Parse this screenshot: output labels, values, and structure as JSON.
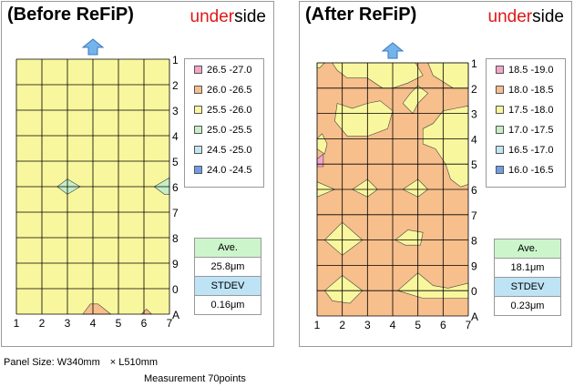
{
  "footer": {
    "panel_size": "Panel Size: W340mm　× L510mm",
    "measurement": "Measurement 70points"
  },
  "colors": {
    "range_pink": "#f4a6c8",
    "range_orange": "#f7bf8c",
    "range_yellow": "#f9f79d",
    "range_green": "#c6efc6",
    "range_cyan": "#c0e6f2",
    "range_blue": "#6f9fe2",
    "grid": "#000000",
    "arrow": "#74b4ec",
    "ave_header": "#ccf5cc",
    "stdev_header": "#bde3f5",
    "side_accent": "#e01818"
  },
  "chart_data": [
    {
      "type": "heatmap",
      "title": "(Before ReFiP)",
      "side": {
        "prefix": "under",
        "suffix": "side"
      },
      "x_ticks": [
        "1",
        "2",
        "3",
        "4",
        "5",
        "6",
        "7"
      ],
      "y_ticks": [
        "1",
        "2",
        "3",
        "4",
        "5",
        "6",
        "7",
        "8",
        "9",
        "0",
        "A"
      ],
      "legend": [
        {
          "label": "26.5 -27.0",
          "color": "#f4a6c8"
        },
        {
          "label": "26.0 -26.5",
          "color": "#f7bf8c"
        },
        {
          "label": "25.5 -26.0",
          "color": "#f9f79d"
        },
        {
          "label": "25.0 -25.5",
          "color": "#c6efc6"
        },
        {
          "label": "24.5 -25.0",
          "color": "#c0e6f2"
        },
        {
          "label": "24.0 -24.5",
          "color": "#6f9fe2"
        }
      ],
      "background_range": "25.5 -26.0",
      "regions": [
        {
          "range": "25.0 -25.5",
          "points": [
            [
              2.6,
              6
            ],
            [
              3,
              5.7
            ],
            [
              3.5,
              6
            ],
            [
              3,
              6.3
            ]
          ]
        },
        {
          "range": "25.0 -25.5",
          "points": [
            [
              6.4,
              6
            ],
            [
              7,
              5.65
            ],
            [
              7,
              6.3
            ],
            [
              6.8,
              6.3
            ]
          ]
        },
        {
          "range": "26.0 -26.5",
          "points": [
            [
              3.6,
              11
            ],
            [
              3.9,
              10.6
            ],
            [
              4.2,
              10.6
            ],
            [
              4.7,
              11
            ]
          ]
        },
        {
          "range": "26.0 -26.5",
          "points": [
            [
              5.9,
              11
            ],
            [
              6.1,
              10.8
            ],
            [
              6.3,
              11
            ]
          ]
        }
      ],
      "stats": {
        "ave_label": "Ave.",
        "ave_value": "25.8μm",
        "stdev_label": "STDEV",
        "stdev_value": "0.16μm"
      }
    },
    {
      "type": "heatmap",
      "title": "(After ReFiP)",
      "side": {
        "prefix": "under",
        "suffix": "side"
      },
      "x_ticks": [
        "1",
        "2",
        "3",
        "4",
        "5",
        "6",
        "7"
      ],
      "y_ticks": [
        "1",
        "2",
        "3",
        "4",
        "5",
        "6",
        "7",
        "8",
        "9",
        "0",
        "A"
      ],
      "legend": [
        {
          "label": "18.5 -19.0",
          "color": "#f4a6c8"
        },
        {
          "label": "18.0 -18.5",
          "color": "#f7bf8c"
        },
        {
          "label": "17.5 -18.0",
          "color": "#f9f79d"
        },
        {
          "label": "17.0 -17.5",
          "color": "#c6efc6"
        },
        {
          "label": "16.5 -17.0",
          "color": "#c0e6f2"
        },
        {
          "label": "16.0 -16.5",
          "color": "#6f9fe2"
        }
      ],
      "background_range": "18.0 -18.5",
      "regions": [
        {
          "range": "17.5 -18.0",
          "points": [
            [
              1,
              1
            ],
            [
              1.3,
              1
            ],
            [
              1.1,
              1.2
            ],
            [
              1,
              1.2
            ]
          ]
        },
        {
          "range": "17.5 -18.0",
          "points": [
            [
              1.6,
              1
            ],
            [
              4.9,
              1
            ],
            [
              5.2,
              1.5
            ],
            [
              4.6,
              1.8
            ],
            [
              4,
              2
            ],
            [
              3.6,
              2
            ],
            [
              3,
              1.6
            ],
            [
              2.2,
              1.6
            ],
            [
              1.8,
              1.3
            ]
          ]
        },
        {
          "range": "17.5 -18.0",
          "points": [
            [
              5.4,
              1
            ],
            [
              7,
              1
            ],
            [
              7,
              2
            ],
            [
              6.4,
              2
            ],
            [
              5.6,
              1.5
            ]
          ]
        },
        {
          "range": "17.5 -18.0",
          "points": [
            [
              1.8,
              2.6
            ],
            [
              2.4,
              2.8
            ],
            [
              3,
              2.6
            ],
            [
              3.5,
              2.5
            ],
            [
              4,
              2.9
            ],
            [
              3.8,
              3.6
            ],
            [
              3,
              3.9
            ],
            [
              2.2,
              3.9
            ],
            [
              1.7,
              3.3
            ]
          ]
        },
        {
          "range": "17.5 -18.0",
          "points": [
            [
              4.4,
              2.6
            ],
            [
              4.7,
              2.2
            ],
            [
              5,
              1.9
            ],
            [
              5.4,
              2.2
            ],
            [
              5,
              2.6
            ],
            [
              4.8,
              3
            ]
          ]
        },
        {
          "range": "17.5 -18.0",
          "points": [
            [
              5.2,
              3.6
            ],
            [
              5.6,
              3.4
            ],
            [
              6,
              2.9
            ],
            [
              6.5,
              2.8
            ],
            [
              7,
              2.7
            ],
            [
              7,
              5.8
            ],
            [
              6.7,
              5.9
            ],
            [
              6.3,
              5.6
            ],
            [
              6.1,
              5
            ],
            [
              5.7,
              4.4
            ],
            [
              5.2,
              4.2
            ]
          ]
        },
        {
          "range": "17.5 -18.0",
          "points": [
            [
              1,
              4
            ],
            [
              1.2,
              3.8
            ],
            [
              1.4,
              4.2
            ],
            [
              1.3,
              4.6
            ],
            [
              1,
              4.4
            ]
          ]
        },
        {
          "range": "17.5 -18.0",
          "points": [
            [
              1,
              5.7
            ],
            [
              1.7,
              6
            ],
            [
              1,
              6.3
            ]
          ]
        },
        {
          "range": "17.5 -18.0",
          "points": [
            [
              2.4,
              6
            ],
            [
              3,
              5.6
            ],
            [
              3.4,
              6
            ],
            [
              3,
              6.3
            ]
          ]
        },
        {
          "range": "17.5 -18.0",
          "points": [
            [
              4.4,
              6
            ],
            [
              5,
              5.6
            ],
            [
              5.4,
              6
            ],
            [
              5,
              6.3
            ]
          ]
        },
        {
          "range": "17.5 -18.0",
          "points": [
            [
              1.3,
              8
            ],
            [
              2,
              7.3
            ],
            [
              2.8,
              8
            ],
            [
              2,
              8.6
            ]
          ]
        },
        {
          "range": "17.5 -18.0",
          "points": [
            [
              4.1,
              8
            ],
            [
              4.6,
              7.6
            ],
            [
              5.2,
              7.7
            ],
            [
              5.1,
              8.2
            ],
            [
              4.5,
              8.2
            ]
          ]
        },
        {
          "range": "17.5 -18.0",
          "points": [
            [
              1.3,
              10
            ],
            [
              2,
              9.4
            ],
            [
              2.8,
              10
            ],
            [
              2.3,
              10.5
            ],
            [
              1.6,
              10.4
            ]
          ]
        },
        {
          "range": "17.5 -18.0",
          "points": [
            [
              4.2,
              10
            ],
            [
              5,
              9.3
            ],
            [
              5.6,
              9.8
            ],
            [
              6.2,
              9.9
            ],
            [
              7,
              9.7
            ],
            [
              7,
              10.3
            ],
            [
              6.4,
              10.3
            ],
            [
              5.2,
              10.3
            ]
          ]
        },
        {
          "range": "18.5 -19.0",
          "points": [
            [
              1,
              4.8
            ],
            [
              1.25,
              4.6
            ],
            [
              1.25,
              5.1
            ],
            [
              1,
              5.1
            ]
          ]
        }
      ],
      "stats": {
        "ave_label": "Ave.",
        "ave_value": "18.1μm",
        "stdev_label": "STDEV",
        "stdev_value": "0.23μm"
      }
    }
  ]
}
